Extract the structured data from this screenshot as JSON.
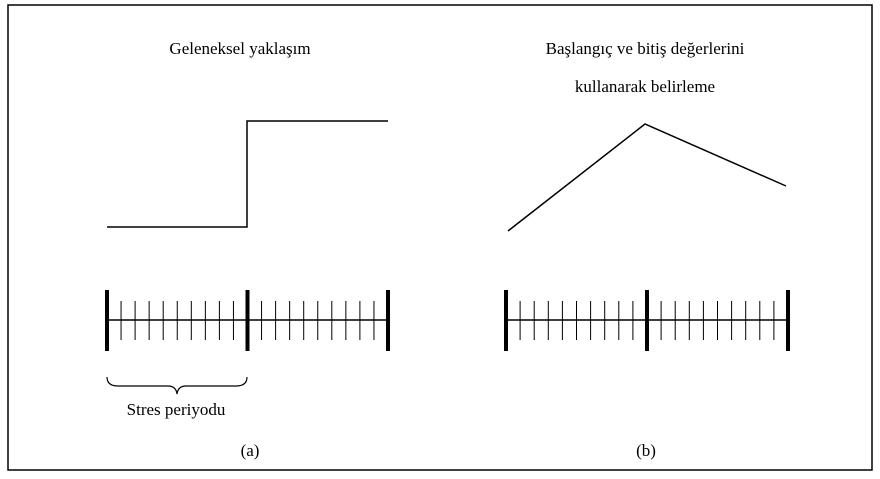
{
  "panels": [
    {
      "title": [
        "Geleneksel yaklaşım"
      ],
      "brace_label": "Stres periyodu",
      "caption": "(a)"
    },
    {
      "title": [
        "Başlangıç ve bitiş değerlerini",
        "kullanarak belirleme"
      ],
      "caption": "(b)"
    }
  ]
}
